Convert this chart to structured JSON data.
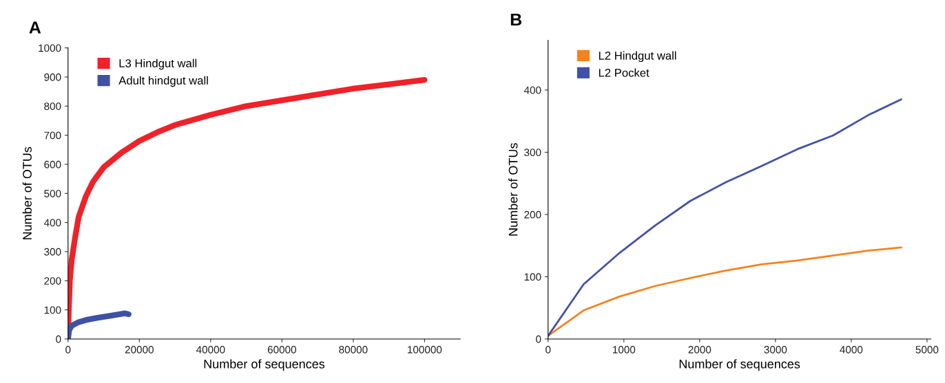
{
  "chart_data": [
    {
      "type": "line",
      "title": "A",
      "xlabel": "Number of sequences",
      "ylabel": "Number of OTUs",
      "xlim": [
        0,
        110000
      ],
      "ylim": [
        0,
        1000
      ],
      "xticks": [
        0,
        20000,
        40000,
        60000,
        80000,
        100000
      ],
      "yticks": [
        0,
        100,
        200,
        300,
        400,
        500,
        600,
        700,
        800,
        900,
        1000
      ],
      "legend": "top left",
      "grid": false,
      "series": [
        {
          "name": "L3 Hindgut wall",
          "color": "#ee2229",
          "x": [
            0,
            200,
            500,
            1000,
            2000,
            3000,
            5000,
            7000,
            10000,
            15000,
            20000,
            25000,
            30000,
            40000,
            50000,
            60000,
            70000,
            80000,
            90000,
            100000
          ],
          "values": [
            0,
            100,
            200,
            270,
            350,
            420,
            490,
            540,
            590,
            640,
            680,
            710,
            735,
            770,
            800,
            820,
            840,
            860,
            875,
            890
          ]
        },
        {
          "name": "Adult hindgut wall",
          "color": "#3f51a5",
          "x": [
            0,
            300,
            1000,
            3000,
            5000,
            8000,
            12000,
            16000,
            17000
          ],
          "values": [
            0,
            30,
            45,
            58,
            65,
            72,
            80,
            88,
            85
          ]
        }
      ]
    },
    {
      "type": "line",
      "title": "B",
      "xlabel": "Number of sequences",
      "ylabel": "Number of OTUs",
      "xlim": [
        0,
        5050
      ],
      "ylim": [
        0,
        480
      ],
      "xticks": [
        0,
        1000,
        2000,
        3000,
        4000,
        5000
      ],
      "yticks": [
        0,
        100,
        200,
        300,
        400
      ],
      "legend": "top left",
      "grid": false,
      "x": [
        0,
        470,
        940,
        1410,
        1880,
        2350,
        2820,
        3290,
        3760,
        4230,
        4660
      ],
      "series": [
        {
          "name": "L2 Hindgut wall",
          "color": "#f58220",
          "values": [
            5,
            46,
            68,
            85,
            98,
            110,
            120,
            126,
            134,
            142,
            147
          ]
        },
        {
          "name": "L2 Pocket",
          "color": "#4251a8",
          "values": [
            5,
            88,
            138,
            182,
            222,
            252,
            278,
            305,
            327,
            360,
            385
          ]
        }
      ]
    }
  ]
}
